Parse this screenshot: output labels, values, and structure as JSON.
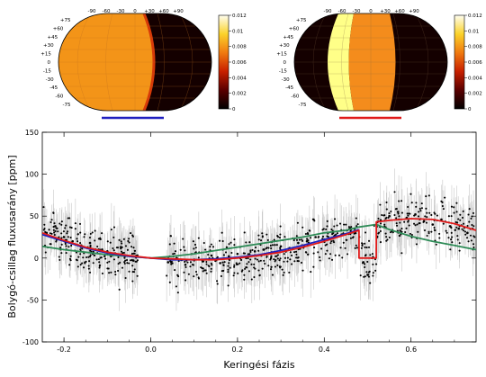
{
  "maps": [
    {
      "longitude_ticks": [
        "-90",
        "-60",
        "-30",
        "0",
        "+30",
        "+60",
        "+90"
      ],
      "latitude_ticks": [
        "+75",
        "+60",
        "+45",
        "+30",
        "+15",
        "0",
        "-15",
        "-30",
        "-45",
        "-60",
        "-75"
      ],
      "colorbar_ticks": [
        "0.012",
        "0.01",
        "0.008",
        "0.006",
        "0.004",
        "0.002",
        "0"
      ],
      "bar_color": "#1f1fbf"
    },
    {
      "longitude_ticks": [
        "-90",
        "-60",
        "-30",
        "0",
        "+30",
        "+60",
        "+90"
      ],
      "latitude_ticks": [
        "+75",
        "+60",
        "+45",
        "+30",
        "+15",
        "0",
        "-15",
        "-30",
        "-45",
        "-60",
        "-75"
      ],
      "colorbar_ticks": [
        "0.012",
        "0.01",
        "0.008",
        "0.006",
        "0.004",
        "0.002",
        "0"
      ],
      "bar_color": "#e01a1a"
    }
  ],
  "chart_data": {
    "type": "scatter",
    "xlabel": "Keringési fázis",
    "ylabel": "Bolygó-csillag fluxusarány [ppm]",
    "xlim": [
      -0.25,
      0.75
    ],
    "ylim": [
      -100,
      150
    ],
    "x_ticks": [
      "-0.2",
      "0.0",
      "0.2",
      "0.4",
      "0.6"
    ],
    "y_ticks": [
      "-100",
      "-50",
      "0",
      "50",
      "100",
      "150"
    ],
    "eclipse_phase": [
      0.48,
      0.52
    ],
    "points": [
      {
        "x": -0.24,
        "y": 30
      },
      {
        "x": -0.22,
        "y": 38
      },
      {
        "x": -0.2,
        "y": 25
      },
      {
        "x": -0.18,
        "y": 20
      },
      {
        "x": -0.16,
        "y": 15
      },
      {
        "x": -0.14,
        "y": 18
      },
      {
        "x": -0.12,
        "y": 10
      },
      {
        "x": -0.1,
        "y": 8
      },
      {
        "x": -0.08,
        "y": 5
      },
      {
        "x": -0.06,
        "y": 2
      },
      {
        "x": -0.04,
        "y": -3
      },
      {
        "x": 0.04,
        "y": -5
      },
      {
        "x": 0.06,
        "y": 0
      },
      {
        "x": 0.08,
        "y": -8
      },
      {
        "x": 0.1,
        "y": -2
      },
      {
        "x": 0.12,
        "y": -4
      },
      {
        "x": 0.14,
        "y": 3
      },
      {
        "x": 0.16,
        "y": -6
      },
      {
        "x": 0.18,
        "y": 2
      },
      {
        "x": 0.2,
        "y": 5
      },
      {
        "x": 0.22,
        "y": 0
      },
      {
        "x": 0.24,
        "y": 8
      },
      {
        "x": 0.26,
        "y": 10
      },
      {
        "x": 0.28,
        "y": 6
      },
      {
        "x": 0.3,
        "y": 14
      },
      {
        "x": 0.32,
        "y": 12
      },
      {
        "x": 0.34,
        "y": 18
      },
      {
        "x": 0.36,
        "y": 20
      },
      {
        "x": 0.38,
        "y": 25
      },
      {
        "x": 0.4,
        "y": 22
      },
      {
        "x": 0.42,
        "y": 30
      },
      {
        "x": 0.44,
        "y": 28
      },
      {
        "x": 0.46,
        "y": 35
      },
      {
        "x": 0.49,
        "y": -5
      },
      {
        "x": 0.5,
        "y": -20
      },
      {
        "x": 0.51,
        "y": 0
      },
      {
        "x": 0.53,
        "y": 45
      },
      {
        "x": 0.55,
        "y": 50
      },
      {
        "x": 0.57,
        "y": 55
      },
      {
        "x": 0.59,
        "y": 48
      },
      {
        "x": 0.61,
        "y": 52
      },
      {
        "x": 0.63,
        "y": 44
      },
      {
        "x": 0.65,
        "y": 40
      },
      {
        "x": 0.67,
        "y": 46
      },
      {
        "x": 0.69,
        "y": 38
      },
      {
        "x": 0.71,
        "y": 35
      },
      {
        "x": 0.73,
        "y": 30
      }
    ],
    "series": [
      {
        "color": "#e01a1a",
        "x": [
          -0.25,
          -0.2,
          -0.15,
          -0.1,
          -0.05,
          0.0,
          0.05,
          0.1,
          0.15,
          0.2,
          0.25,
          0.3,
          0.35,
          0.4,
          0.45,
          0.48,
          0.48,
          0.52,
          0.52,
          0.55,
          0.6,
          0.65,
          0.7,
          0.75
        ],
        "y": [
          30,
          21,
          13,
          7,
          3,
          0,
          -1,
          -2,
          -2,
          0,
          3,
          7,
          13,
          20,
          28,
          33,
          0,
          0,
          43,
          45,
          47,
          46,
          41,
          33
        ]
      },
      {
        "color": "#1f1fbf",
        "x": [
          -0.25,
          -0.2,
          -0.15,
          -0.1,
          -0.05,
          0.0,
          0.05,
          0.1,
          0.15,
          0.2,
          0.25,
          0.3,
          0.35,
          0.4,
          0.45,
          0.48
        ],
        "y": [
          28,
          20,
          12,
          6,
          2,
          0,
          -2,
          -2,
          -1,
          1,
          4,
          9,
          15,
          22,
          29,
          34
        ]
      },
      {
        "color": "#2e8b57",
        "x": [
          -0.25,
          -0.2,
          -0.15,
          -0.1,
          -0.05,
          0.0,
          0.05,
          0.1,
          0.15,
          0.2,
          0.25,
          0.3,
          0.35,
          0.4,
          0.45,
          0.48,
          0.52,
          0.55,
          0.6,
          0.65,
          0.7,
          0.75
        ],
        "y": [
          14,
          10,
          7,
          4,
          2,
          0,
          2,
          5,
          9,
          13,
          17,
          21,
          25,
          30,
          33,
          37,
          40,
          34,
          26,
          20,
          15,
          10
        ]
      }
    ]
  }
}
